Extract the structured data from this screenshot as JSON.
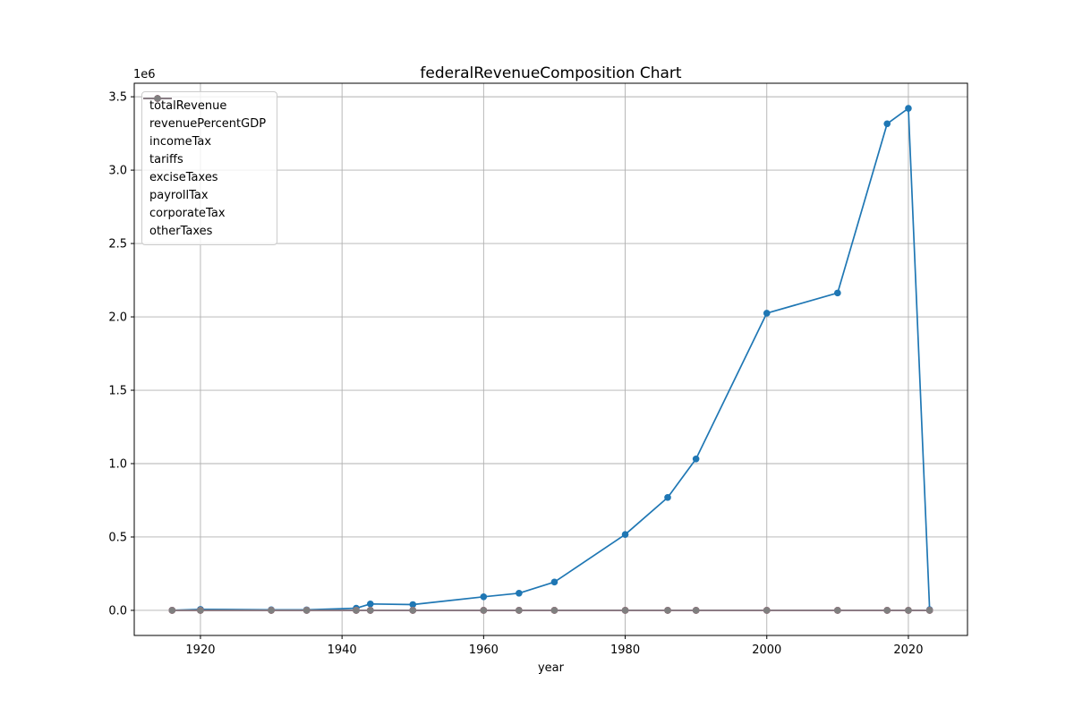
{
  "chart_data": {
    "type": "line",
    "title": "federalRevenueComposition Chart",
    "xlabel": "year",
    "ylabel": "",
    "y_axis_multiplier": "1e6",
    "grid": true,
    "legend_position": "upper left",
    "xlim": [
      1910.65,
      2028.35
    ],
    "ylim": [
      -171020,
      3592184
    ],
    "x_ticks": [
      1920,
      1940,
      1960,
      1980,
      2000,
      2020
    ],
    "y_ticks": [
      0,
      500000,
      1000000,
      1500000,
      2000000,
      2500000,
      3000000,
      3500000
    ],
    "y_tick_labels": [
      "0.0",
      "0.5",
      "1.0",
      "1.5",
      "2.0",
      "2.5",
      "3.0",
      "3.5"
    ],
    "x": [
      1916,
      1920,
      1930,
      1935,
      1942,
      1944,
      1950,
      1960,
      1965,
      1970,
      1980,
      1986,
      1990,
      2000,
      2010,
      2017,
      2020,
      2023
    ],
    "series": [
      {
        "name": "totalRevenue",
        "color": "#1f77b4",
        "values": [
          761,
          6649,
          4058,
          3609,
          14634,
          43747,
          39443,
          92492,
          116817,
          192807,
          517112,
          769155,
          1031958,
          2025191,
          2162724,
          3316182,
          3421164,
          4439
        ]
      },
      {
        "name": "revenuePercentGDP",
        "color": "#ff7f0e",
        "values": [
          0,
          0,
          0,
          0,
          0,
          0,
          0,
          0,
          0,
          0,
          0,
          0,
          0,
          0,
          0,
          0,
          0,
          0
        ]
      },
      {
        "name": "incomeTax",
        "color": "#2ca02c",
        "values": [
          0,
          0,
          0,
          0,
          0,
          0,
          0,
          0,
          0,
          0,
          0,
          0,
          0,
          0,
          0,
          0,
          0,
          0
        ]
      },
      {
        "name": "tariffs",
        "color": "#d62728",
        "values": [
          0,
          0,
          0,
          0,
          0,
          0,
          0,
          0,
          0,
          0,
          0,
          0,
          0,
          0,
          0,
          0,
          0,
          0
        ]
      },
      {
        "name": "exciseTaxes",
        "color": "#9467bd",
        "values": [
          0,
          0,
          0,
          0,
          0,
          0,
          0,
          0,
          0,
          0,
          0,
          0,
          0,
          0,
          0,
          0,
          0,
          0
        ]
      },
      {
        "name": "payrollTax",
        "color": "#8c564b",
        "values": [
          0,
          0,
          0,
          0,
          0,
          0,
          0,
          0,
          0,
          0,
          0,
          0,
          0,
          0,
          0,
          0,
          0,
          0
        ]
      },
      {
        "name": "corporateTax",
        "color": "#e377c2",
        "values": [
          0,
          0,
          0,
          0,
          0,
          0,
          0,
          0,
          0,
          0,
          0,
          0,
          0,
          0,
          0,
          0,
          0,
          0
        ]
      },
      {
        "name": "otherTaxes",
        "color": "#7f7f7f",
        "values": [
          0,
          0,
          0,
          0,
          0,
          0,
          0,
          0,
          0,
          0,
          0,
          0,
          0,
          0,
          0,
          0,
          0,
          0
        ]
      }
    ],
    "series_note": "All series except totalRevenue render at ≈0 on the 1e6-scaled y axis (visually indistinguishable from zero; gray otherTaxes line drawn on top of the flat cluster).",
    "styles": {
      "grid_color": "#b0b0b0",
      "axes_edge_color": "#000000",
      "background": "#ffffff",
      "marker": "circle",
      "line_width": 1.7,
      "marker_radius": 3.8
    }
  }
}
